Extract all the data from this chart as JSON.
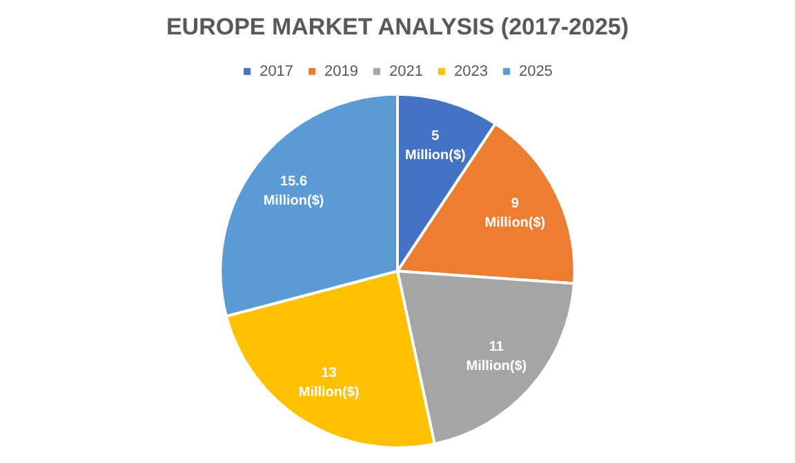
{
  "chart_data": {
    "type": "pie",
    "title": "EUROPE MARKET ANALYSIS (2017-2025)",
    "categories": [
      "2017",
      "2019",
      "2021",
      "2023",
      "2025"
    ],
    "values": [
      5,
      9,
      11,
      13,
      15.6
    ],
    "colors": [
      "#4472c4",
      "#ed7d31",
      "#a5a5a5",
      "#ffc000",
      "#5b9bd5"
    ],
    "value_labels": [
      "5 Million($)",
      "9 Million($)",
      "11 Million($)",
      "13 Million($)",
      "15.6 Million($)"
    ],
    "legend": "top"
  }
}
